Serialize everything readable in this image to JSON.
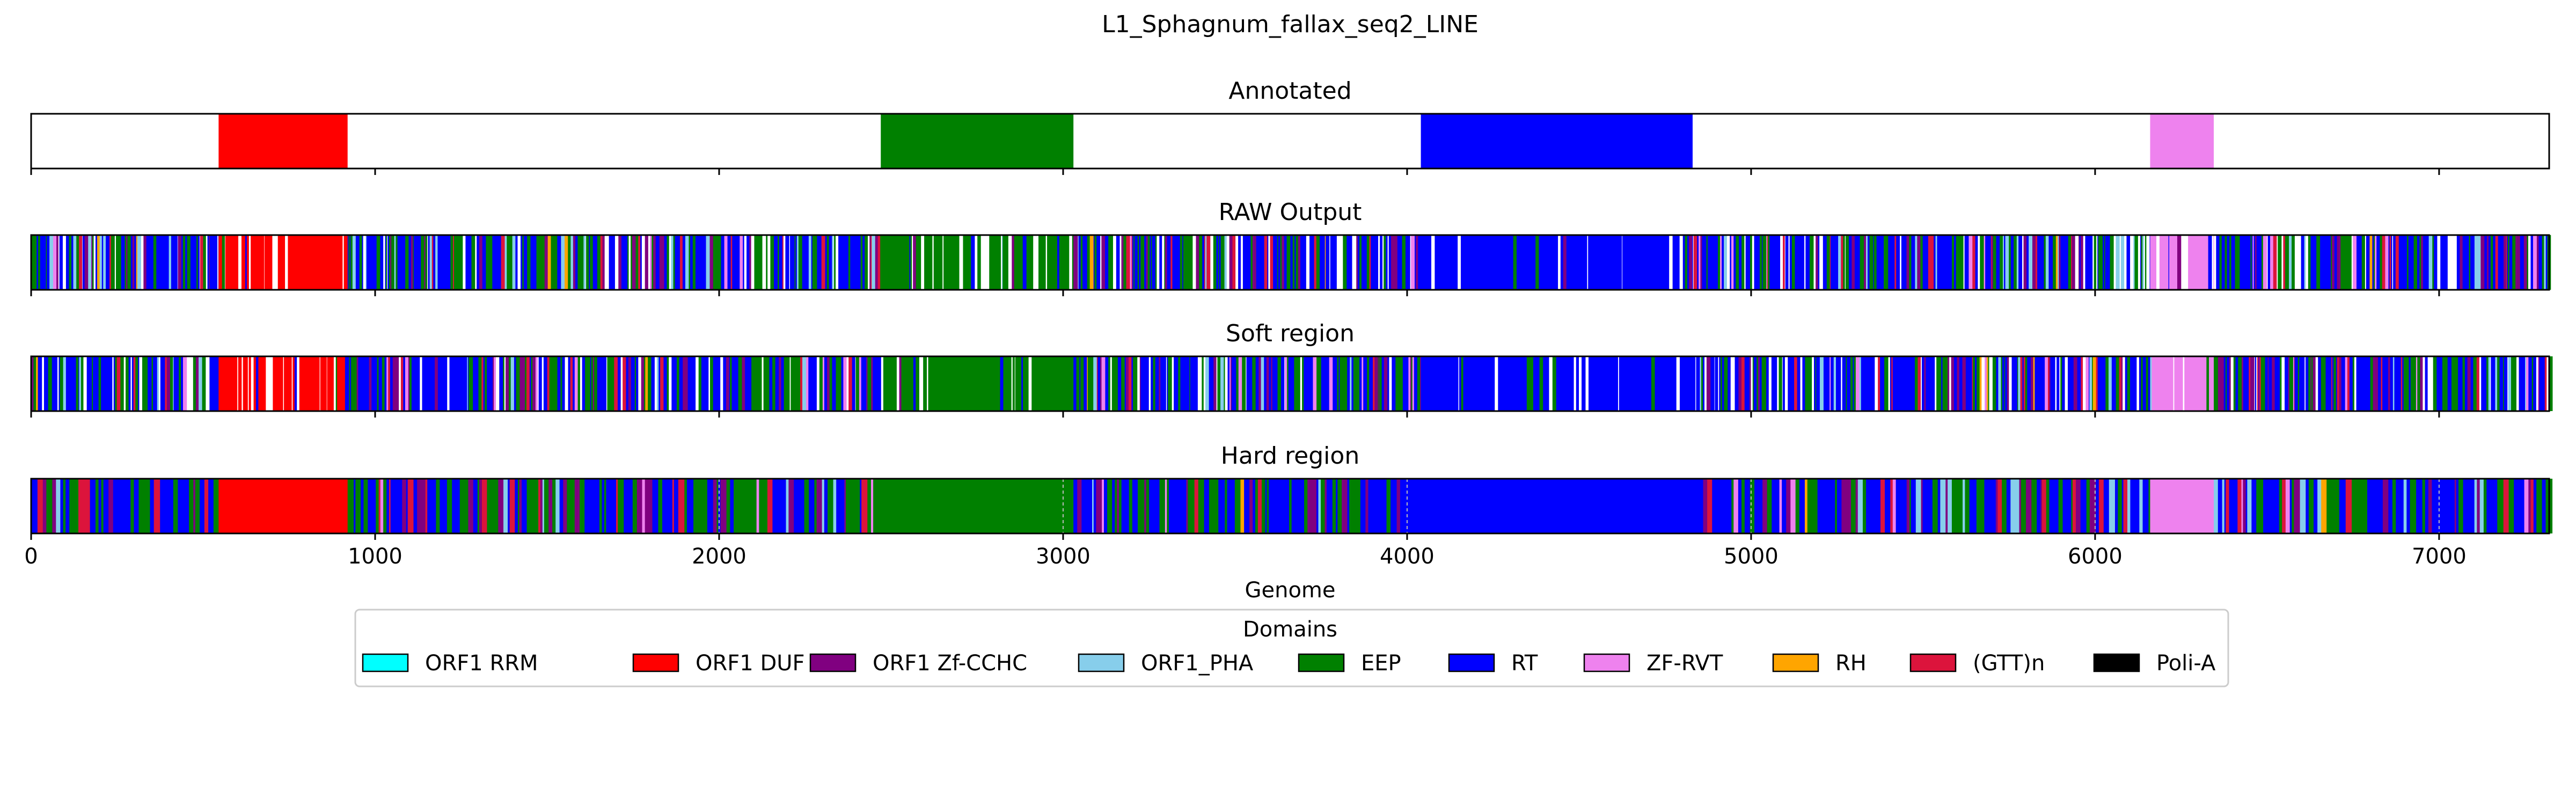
{
  "chart_data": {
    "type": "genome-track",
    "title": "L1_Sphagnum_fallax_seq2_LINE",
    "xlabel": "Genome",
    "xlim": [
      0,
      7320
    ],
    "xticks": [
      0,
      1000,
      2000,
      3000,
      4000,
      5000,
      6000,
      7000
    ],
    "xtick_labels": [
      "0",
      "1000",
      "2000",
      "3000",
      "4000",
      "5000",
      "6000",
      "7000"
    ],
    "legend": {
      "title": "Domains",
      "placement": "bottom-center",
      "items": [
        {
          "name": "ORF1 RRM",
          "color": "#00ffff"
        },
        {
          "name": "ORF1 DUF",
          "color": "#ff0000"
        },
        {
          "name": "ORF1 Zf-CCHC",
          "color": "#800080"
        },
        {
          "name": "ORF1_PHA",
          "color": "#87ceeb"
        },
        {
          "name": "EEP",
          "color": "#008000"
        },
        {
          "name": "RT",
          "color": "#0000ff"
        },
        {
          "name": "ZF-RVT",
          "color": "#ee82ee"
        },
        {
          "name": "RH",
          "color": "#ffa500"
        },
        {
          "name": "(GTT)n",
          "color": "#dc143c"
        },
        {
          "name": "Poli-A",
          "color": "#000000"
        }
      ]
    },
    "tracks": [
      {
        "title": "Annotated",
        "style": "annotated",
        "segments": [
          {
            "domain": "ORF1 DUF",
            "start": 545,
            "end": 920
          },
          {
            "domain": "EEP",
            "start": 2470,
            "end": 3030
          },
          {
            "domain": "RT",
            "start": 4040,
            "end": 4830
          },
          {
            "domain": "ZF-RVT",
            "start": 6160,
            "end": 6345
          }
        ]
      },
      {
        "title": "RAW Output",
        "style": "raw",
        "dominant": [
          {
            "domain": "ORF1 DUF",
            "start": 545,
            "end": 920
          },
          {
            "domain": "EEP",
            "start": 2470,
            "end": 3030
          },
          {
            "domain": "RT",
            "start": 4040,
            "end": 4830
          },
          {
            "domain": "ZF-RVT",
            "start": 6160,
            "end": 6345
          }
        ]
      },
      {
        "title": "Soft region",
        "style": "soft",
        "dominant": [
          {
            "domain": "ORF1 DUF",
            "start": 545,
            "end": 920
          },
          {
            "domain": "EEP",
            "start": 2470,
            "end": 3030
          },
          {
            "domain": "RT",
            "start": 4040,
            "end": 4830
          },
          {
            "domain": "ZF-RVT",
            "start": 6160,
            "end": 6345
          }
        ]
      },
      {
        "title": "Hard region",
        "style": "hard",
        "dominant": [
          {
            "domain": "ORF1 DUF",
            "start": 545,
            "end": 920
          },
          {
            "domain": "EEP",
            "start": 2470,
            "end": 3030
          },
          {
            "domain": "RT",
            "start": 4040,
            "end": 4830
          },
          {
            "domain": "ZF-RVT",
            "start": 6160,
            "end": 6345
          }
        ]
      }
    ]
  }
}
